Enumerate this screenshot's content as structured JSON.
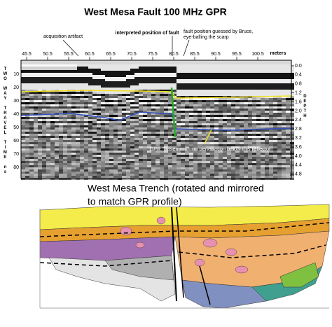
{
  "title": "West Mesa Fault 100 MHz GPR",
  "annotations": {
    "artifact": "acquisition artifact",
    "fault": "interpreted position of fault",
    "bruce": [
      "fault position guessed by Bruce,",
      "eye-balling the scarp"
    ],
    "basement": "GPR \"basement\": no penetration below this reflector"
  },
  "top_axis": {
    "labels": [
      "45.5",
      "50.5",
      "55.5",
      "60.5",
      "65.5",
      "70.5",
      "75.5",
      "80.5",
      "85.5",
      "90.5",
      "95.5",
      "100.5"
    ],
    "unit": "meters"
  },
  "left_axis": {
    "title": "TWO WAY TRAVEL TIME ns",
    "labels": [
      "10",
      "20",
      "30",
      "40",
      "50",
      "60",
      "70",
      "80"
    ]
  },
  "right_axis": {
    "title": "DEPTH",
    "labels": [
      "0.0",
      "0.4",
      "0.8",
      "1.2",
      "1.6",
      "2.0",
      "2.4",
      "2.8",
      "3.2",
      "3.6",
      "4.0",
      "4.4",
      "4.8"
    ]
  },
  "trench": {
    "title": [
      "West Mesa Trench (rotated and mirrored",
      "to match GPR profile)"
    ]
  }
}
